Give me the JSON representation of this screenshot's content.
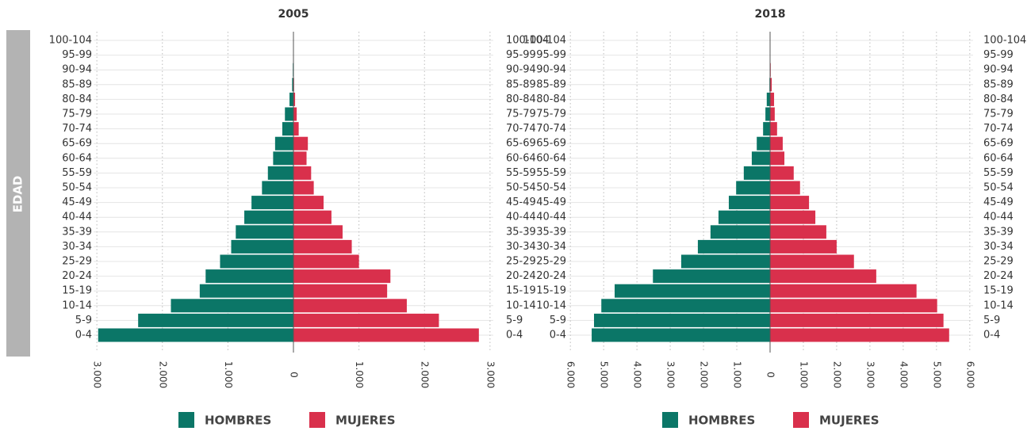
{
  "chart_data": [
    {
      "type": "pyramid",
      "title": "2005",
      "ylabel": "EDAD",
      "categories": [
        "0-4",
        "5-9",
        "10-14",
        "15-19",
        "20-24",
        "25-29",
        "30-34",
        "35-39",
        "40-44",
        "45-49",
        "50-54",
        "55-59",
        "60-64",
        "65-69",
        "70-74",
        "75-79",
        "80-84",
        "85-89",
        "90-94",
        "95-99",
        "100-104"
      ],
      "series": [
        {
          "name": "HOMBRES",
          "color": "#0b7667",
          "side": "left",
          "values": [
            2980,
            2370,
            1870,
            1430,
            1340,
            1120,
            950,
            880,
            750,
            640,
            480,
            390,
            310,
            280,
            170,
            130,
            60,
            20,
            10,
            5,
            2
          ]
        },
        {
          "name": "MUJERES",
          "color": "#d9304c",
          "side": "right",
          "values": [
            2830,
            2220,
            1730,
            1430,
            1480,
            1000,
            890,
            750,
            580,
            460,
            310,
            270,
            200,
            220,
            80,
            50,
            25,
            10,
            5,
            3,
            1
          ]
        }
      ],
      "xlim": [
        -3050,
        3050
      ],
      "xticks": [
        {
          "value": -3000,
          "label": "3.000"
        },
        {
          "value": -2000,
          "label": "2.000"
        },
        {
          "value": -1000,
          "label": "1.000"
        },
        0,
        {
          "value": 1000,
          "label": "1.000"
        },
        {
          "value": 2000,
          "label": "2.000"
        },
        {
          "value": 3000,
          "label": "3.000"
        }
      ],
      "grid": true
    },
    {
      "type": "pyramid",
      "title": "2018",
      "categories": [
        "0-4",
        "5-9",
        "10-14",
        "15-19",
        "20-24",
        "25-29",
        "30-34",
        "35-39",
        "40-44",
        "45-49",
        "50-54",
        "55-59",
        "60-64",
        "65-69",
        "70-74",
        "75-79",
        "80-84",
        "85-89",
        "90-94",
        "95-99",
        "100-104"
      ],
      "series": [
        {
          "name": "HOMBRES",
          "color": "#0b7667",
          "side": "left",
          "values": [
            5360,
            5290,
            5070,
            4670,
            3520,
            2670,
            2170,
            1790,
            1550,
            1240,
            1020,
            790,
            550,
            400,
            210,
            140,
            100,
            20,
            10,
            5,
            2
          ]
        },
        {
          "name": "MUJERES",
          "color": "#d9304c",
          "side": "right",
          "values": [
            5380,
            5210,
            5020,
            4400,
            3190,
            2520,
            2000,
            1690,
            1360,
            1170,
            900,
            710,
            430,
            380,
            210,
            140,
            120,
            50,
            20,
            10,
            5
          ]
        }
      ],
      "xlim": [
        -6100,
        6100
      ],
      "xticks": [
        {
          "value": -6000,
          "label": "6.000"
        },
        {
          "value": -5000,
          "label": "5.000"
        },
        {
          "value": -4000,
          "label": "4.000"
        },
        {
          "value": -3000,
          "label": "3.000"
        },
        {
          "value": -2000,
          "label": "2.000"
        },
        {
          "value": -1000,
          "label": "1.000"
        },
        0,
        {
          "value": 1000,
          "label": "1.000"
        },
        {
          "value": 2000,
          "label": "2.000"
        },
        {
          "value": 3000,
          "label": "3.000"
        },
        {
          "value": 4000,
          "label": "4.000"
        },
        {
          "value": 5000,
          "label": "5.000"
        },
        {
          "value": 6000,
          "label": "6.000"
        }
      ],
      "grid": true
    }
  ]
}
